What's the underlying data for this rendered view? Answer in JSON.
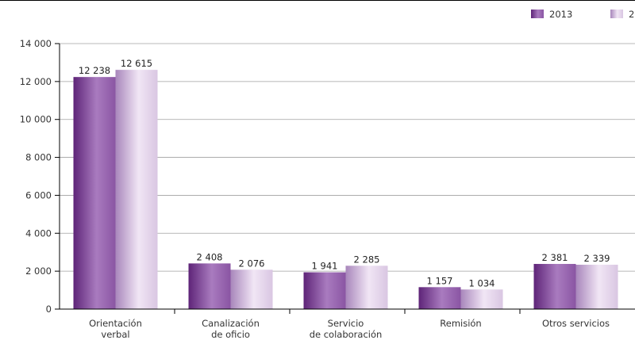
{
  "chart_data": {
    "type": "bar",
    "categories": [
      [
        "Orientación",
        "verbal"
      ],
      [
        "Canalización",
        "de oficio"
      ],
      [
        "Servicio",
        "de colaboración"
      ],
      [
        "Remisión"
      ],
      [
        "Otros servicios"
      ]
    ],
    "series": [
      {
        "name": "2013",
        "values": [
          12238,
          2408,
          1941,
          1157,
          2381
        ],
        "value_labels": [
          "12 238",
          "2 408",
          "1 941",
          "1 157",
          "2 381"
        ]
      },
      {
        "name": "2",
        "values": [
          12615,
          2076,
          2285,
          1034,
          2339
        ],
        "value_labels": [
          "12 615",
          "2 076",
          "2 285",
          "1 034",
          "2 339"
        ]
      }
    ],
    "ylim": [
      0,
      14000
    ],
    "yticks": [
      0,
      2000,
      4000,
      6000,
      8000,
      10000,
      12000,
      14000
    ],
    "ytick_labels": [
      "0",
      "2 000",
      "4 000",
      "6 000",
      "8 000",
      "10 000",
      "12 000",
      "14 000"
    ],
    "grid": true,
    "legend_position": "top-right",
    "colors": {
      "series_0_dark": "#6a2d84",
      "series_0_light": "#b58ac8",
      "series_1_dark": "#b694c6",
      "series_1_light": "#efe3f4",
      "grid": "#a0a0a0",
      "axis": "#000000"
    }
  }
}
